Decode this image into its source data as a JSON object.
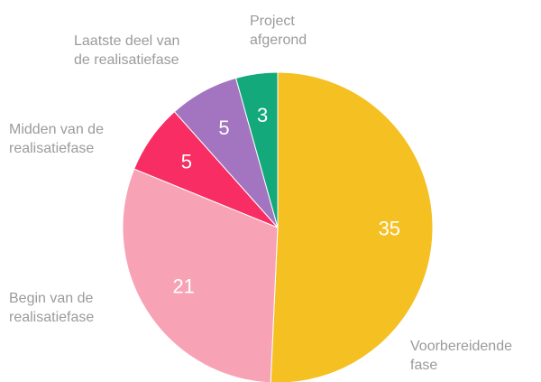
{
  "chart_data": {
    "type": "pie",
    "categories": [
      "Voorbereidende fase",
      "Begin van de realisatiefase",
      "Midden van de realisatiefase",
      "Laatste deel van de realisatiefase",
      "Project afgerond"
    ],
    "values": [
      35,
      21,
      5,
      5,
      3
    ],
    "colors": [
      "#f5c022",
      "#f7a3b5",
      "#f72d63",
      "#a374c0",
      "#13a97a"
    ]
  }
}
